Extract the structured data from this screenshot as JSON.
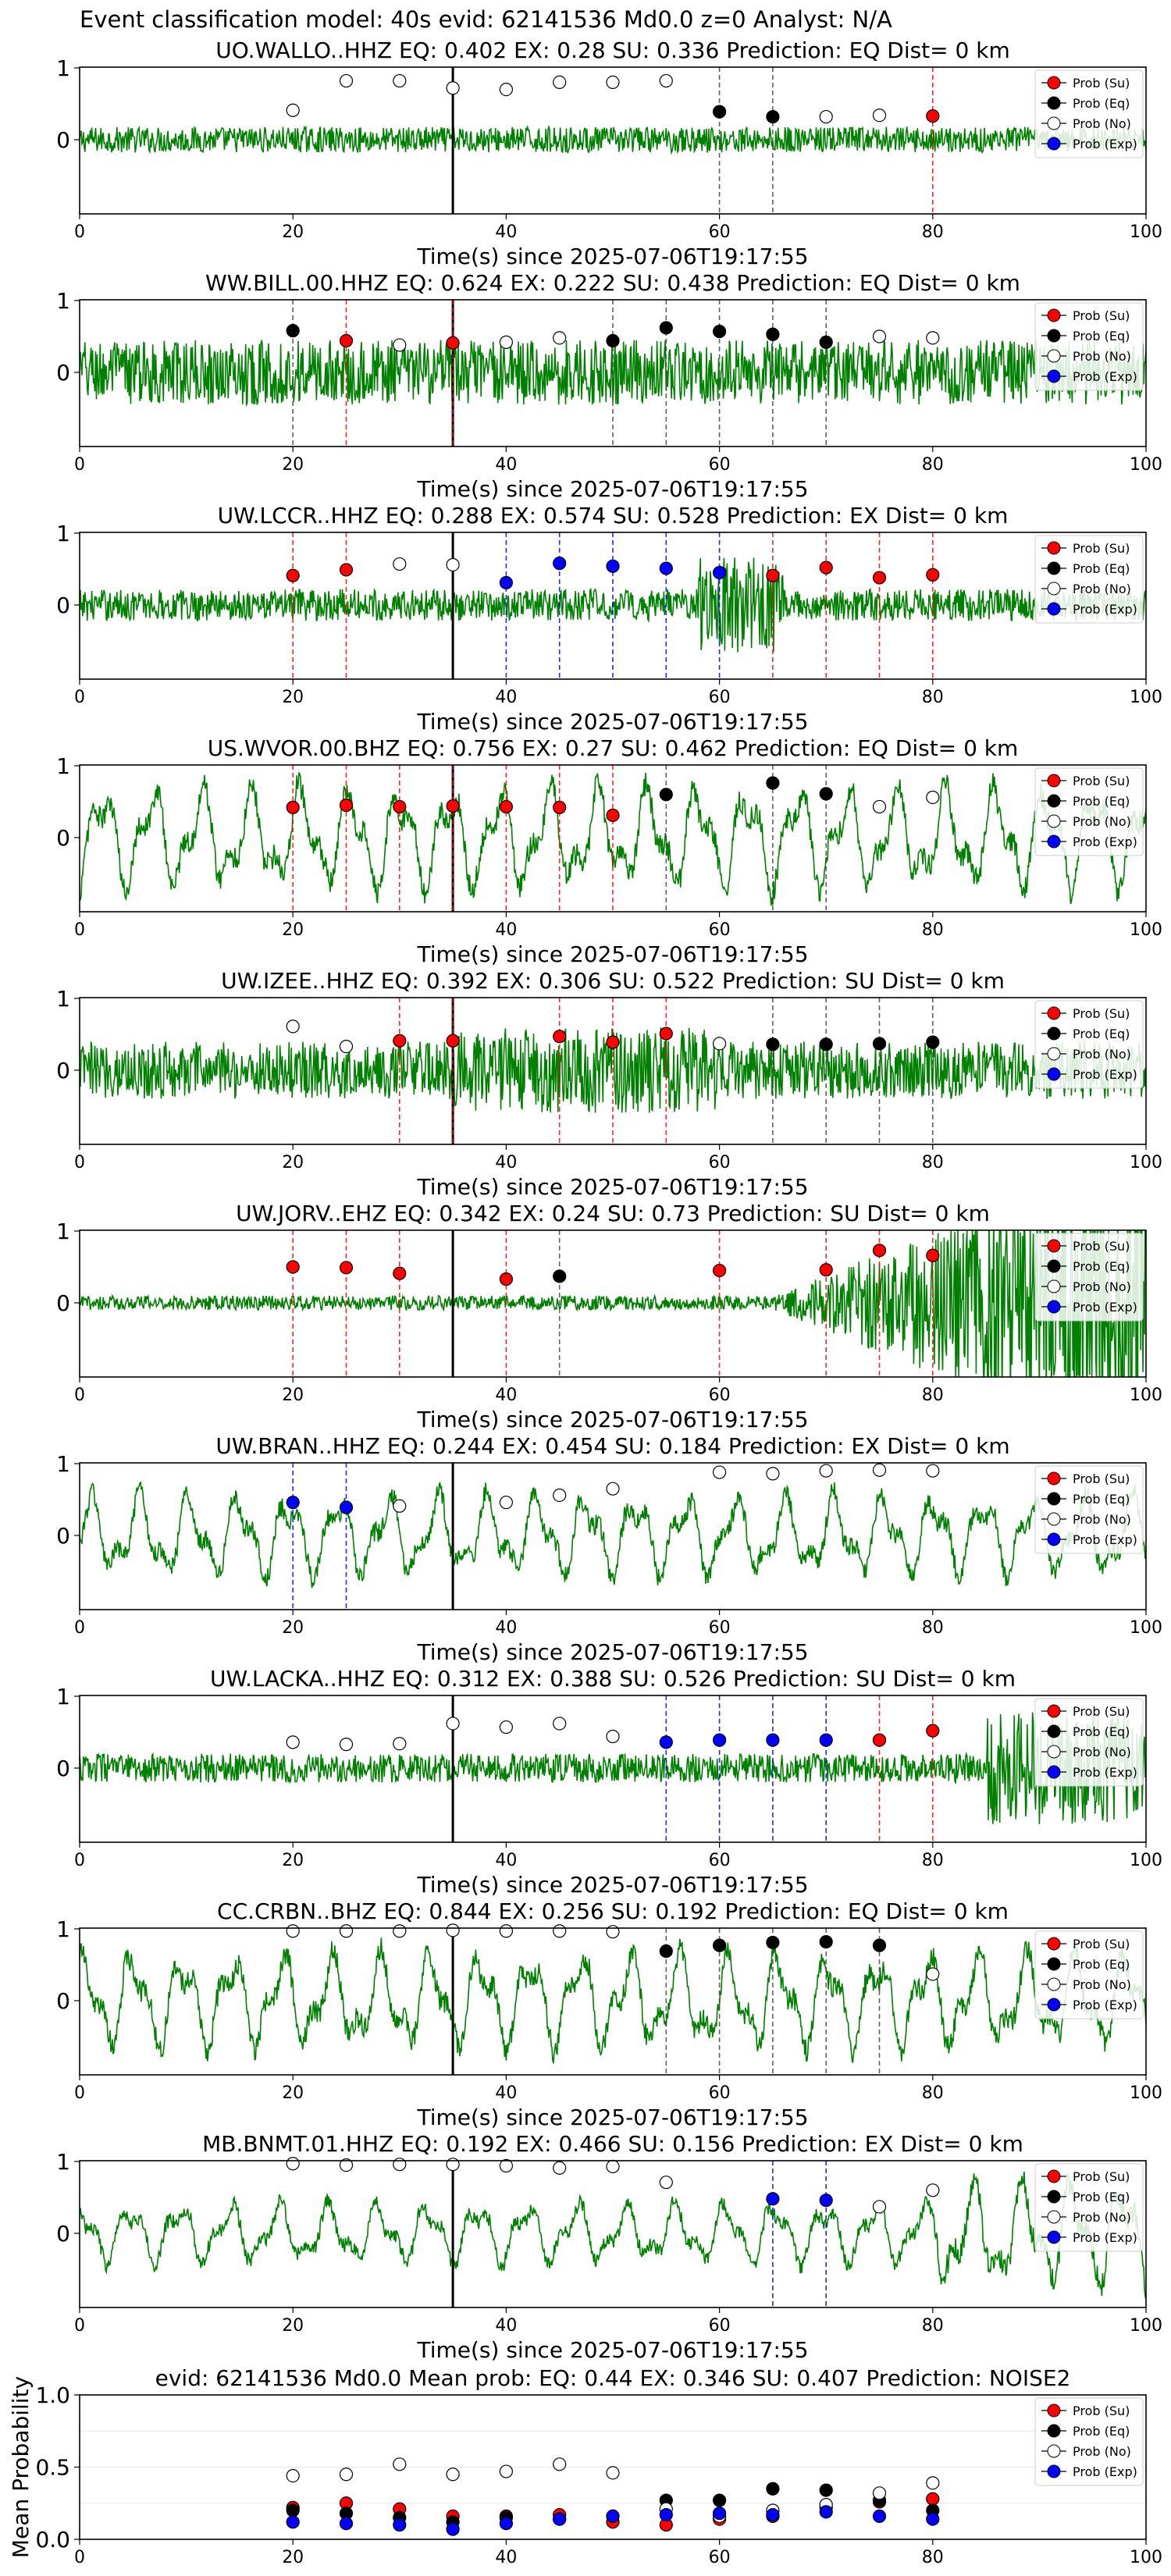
{
  "figure": {
    "suptitle": "Event classification model: 40s evid: 62141536 Md0.0 z=0 Analyst: N/A"
  },
  "colors": {
    "waveform": "#008000",
    "su": "#ff0000",
    "eq": "#000000",
    "no": "#ffffff",
    "exp": "#0000ff",
    "event_line": "#000000"
  },
  "chart_data": [
    {
      "type": "line",
      "title": "UO.WALLO..HHZ   EQ: 0.402  EX: 0.28  SU: 0.336   Prediction: EQ    Dist= 0 km",
      "xlabel": "Time(s) since 2025-07-06T19:17:55",
      "xlim": [
        0,
        100
      ],
      "xticks": [
        0,
        20,
        40,
        60,
        80,
        100
      ],
      "yticks": [
        0,
        1
      ],
      "event_time": 35,
      "waveform": {
        "character": "low-amplitude noise",
        "amplitude": 0.18
      },
      "legend": [
        "Prob (Su)",
        "Prob (Eq)",
        "Prob (No)",
        "Prob (Exp)"
      ],
      "points": [
        {
          "t": 20,
          "p": 0.41,
          "c": "no"
        },
        {
          "t": 25,
          "p": 0.82,
          "c": "no"
        },
        {
          "t": 30,
          "p": 0.82,
          "c": "no"
        },
        {
          "t": 35,
          "p": 0.72,
          "c": "no"
        },
        {
          "t": 40,
          "p": 0.7,
          "c": "no"
        },
        {
          "t": 45,
          "p": 0.8,
          "c": "no"
        },
        {
          "t": 50,
          "p": 0.8,
          "c": "no"
        },
        {
          "t": 55,
          "p": 0.82,
          "c": "no"
        },
        {
          "t": 60,
          "p": 0.39,
          "c": "eq"
        },
        {
          "t": 65,
          "p": 0.32,
          "c": "eq"
        },
        {
          "t": 70,
          "p": 0.32,
          "c": "no"
        },
        {
          "t": 75,
          "p": 0.34,
          "c": "no"
        },
        {
          "t": 80,
          "p": 0.33,
          "c": "su"
        }
      ]
    },
    {
      "type": "line",
      "title": "WW.BILL.00.HHZ   EQ: 0.624  EX: 0.222  SU: 0.438   Prediction: EQ    Dist= 0 km",
      "xlabel": "Time(s) since 2025-07-06T19:17:55",
      "xlim": [
        0,
        100
      ],
      "xticks": [
        0,
        20,
        40,
        60,
        80,
        100
      ],
      "yticks": [
        0,
        1
      ],
      "event_time": 35,
      "waveform": {
        "character": "dense noise",
        "amplitude": 0.45
      },
      "legend": [
        "Prob (Su)",
        "Prob (Eq)",
        "Prob (No)",
        "Prob (Exp)"
      ],
      "points": [
        {
          "t": 20,
          "p": 0.58,
          "c": "eq"
        },
        {
          "t": 25,
          "p": 0.44,
          "c": "su"
        },
        {
          "t": 30,
          "p": 0.38,
          "c": "no"
        },
        {
          "t": 35,
          "p": 0.41,
          "c": "su"
        },
        {
          "t": 40,
          "p": 0.42,
          "c": "no"
        },
        {
          "t": 45,
          "p": 0.48,
          "c": "no"
        },
        {
          "t": 50,
          "p": 0.44,
          "c": "eq"
        },
        {
          "t": 55,
          "p": 0.62,
          "c": "eq"
        },
        {
          "t": 60,
          "p": 0.57,
          "c": "eq"
        },
        {
          "t": 65,
          "p": 0.53,
          "c": "eq"
        },
        {
          "t": 70,
          "p": 0.42,
          "c": "eq"
        },
        {
          "t": 75,
          "p": 0.5,
          "c": "no"
        },
        {
          "t": 80,
          "p": 0.48,
          "c": "no"
        }
      ]
    },
    {
      "type": "line",
      "title": "UW.LCCR..HHZ   EQ: 0.288  EX: 0.574  SU: 0.528   Prediction: EX    Dist= 0 km",
      "xlabel": "Time(s) since 2025-07-06T19:17:55",
      "xlim": [
        0,
        100
      ],
      "xticks": [
        0,
        20,
        40,
        60,
        80,
        100
      ],
      "yticks": [
        0,
        1
      ],
      "event_time": 35,
      "waveform": {
        "character": "noise with burst near 60 s",
        "amplitude": 0.22
      },
      "legend": [
        "Prob (Su)",
        "Prob (Eq)",
        "Prob (No)",
        "Prob (Exp)"
      ],
      "points": [
        {
          "t": 20,
          "p": 0.41,
          "c": "su"
        },
        {
          "t": 25,
          "p": 0.49,
          "c": "su"
        },
        {
          "t": 30,
          "p": 0.57,
          "c": "no"
        },
        {
          "t": 35,
          "p": 0.56,
          "c": "no"
        },
        {
          "t": 40,
          "p": 0.31,
          "c": "exp"
        },
        {
          "t": 45,
          "p": 0.58,
          "c": "exp"
        },
        {
          "t": 50,
          "p": 0.54,
          "c": "exp"
        },
        {
          "t": 55,
          "p": 0.51,
          "c": "exp"
        },
        {
          "t": 60,
          "p": 0.45,
          "c": "exp"
        },
        {
          "t": 65,
          "p": 0.41,
          "c": "su"
        },
        {
          "t": 70,
          "p": 0.52,
          "c": "su"
        },
        {
          "t": 75,
          "p": 0.38,
          "c": "su"
        },
        {
          "t": 80,
          "p": 0.42,
          "c": "su"
        }
      ]
    },
    {
      "type": "line",
      "title": "US.WVOR.00.BHZ   EQ: 0.756  EX: 0.27  SU: 0.462   Prediction: EQ    Dist= 0 km",
      "xlabel": "Time(s) since 2025-07-06T19:17:55",
      "xlim": [
        0,
        100
      ],
      "xticks": [
        0,
        20,
        40,
        60,
        80,
        100
      ],
      "yticks": [
        0,
        1
      ],
      "event_time": 35,
      "waveform": {
        "character": "long-period oscillation",
        "amplitude": 0.75
      },
      "legend": [
        "Prob (Su)",
        "Prob (Eq)",
        "Prob (No)",
        "Prob (Exp)"
      ],
      "points": [
        {
          "t": 20,
          "p": 0.42,
          "c": "su"
        },
        {
          "t": 25,
          "p": 0.45,
          "c": "su"
        },
        {
          "t": 30,
          "p": 0.43,
          "c": "su"
        },
        {
          "t": 35,
          "p": 0.44,
          "c": "su"
        },
        {
          "t": 40,
          "p": 0.43,
          "c": "su"
        },
        {
          "t": 45,
          "p": 0.42,
          "c": "su"
        },
        {
          "t": 50,
          "p": 0.31,
          "c": "su"
        },
        {
          "t": 55,
          "p": 0.6,
          "c": "eq"
        },
        {
          "t": 65,
          "p": 0.76,
          "c": "eq"
        },
        {
          "t": 70,
          "p": 0.61,
          "c": "eq"
        },
        {
          "t": 75,
          "p": 0.43,
          "c": "no"
        },
        {
          "t": 80,
          "p": 0.56,
          "c": "no"
        }
      ]
    },
    {
      "type": "line",
      "title": "UW.IZEE..HHZ   EQ: 0.392  EX: 0.306  SU: 0.522   Prediction: SU    Dist= 0 km",
      "xlabel": "Time(s) since 2025-07-06T19:17:55",
      "xlim": [
        0,
        100
      ],
      "xticks": [
        0,
        20,
        40,
        60,
        80,
        100
      ],
      "yticks": [
        0,
        1
      ],
      "event_time": 35,
      "waveform": {
        "character": "dense noise, stronger 35-60 s",
        "amplitude": 0.4
      },
      "legend": [
        "Prob (Su)",
        "Prob (Eq)",
        "Prob (No)",
        "Prob (Exp)"
      ],
      "points": [
        {
          "t": 20,
          "p": 0.61,
          "c": "no"
        },
        {
          "t": 25,
          "p": 0.33,
          "c": "no"
        },
        {
          "t": 30,
          "p": 0.41,
          "c": "su"
        },
        {
          "t": 35,
          "p": 0.41,
          "c": "su"
        },
        {
          "t": 45,
          "p": 0.47,
          "c": "su"
        },
        {
          "t": 50,
          "p": 0.39,
          "c": "su"
        },
        {
          "t": 55,
          "p": 0.51,
          "c": "su"
        },
        {
          "t": 60,
          "p": 0.37,
          "c": "no"
        },
        {
          "t": 65,
          "p": 0.36,
          "c": "eq"
        },
        {
          "t": 70,
          "p": 0.36,
          "c": "eq"
        },
        {
          "t": 75,
          "p": 0.37,
          "c": "eq"
        },
        {
          "t": 80,
          "p": 0.39,
          "c": "eq"
        }
      ]
    },
    {
      "type": "line",
      "title": "UW.JORV..EHZ   EQ: 0.342  EX: 0.24  SU: 0.73   Prediction: SU    Dist= 0 km",
      "xlabel": "Time(s) since 2025-07-06T19:17:55",
      "xlim": [
        0,
        100
      ],
      "xticks": [
        0,
        20,
        40,
        60,
        80,
        100
      ],
      "yticks": [
        0,
        1
      ],
      "event_time": 35,
      "waveform": {
        "character": "quiet then large signal after 65 s",
        "amplitude": 0.1
      },
      "legend": [
        "Prob (Su)",
        "Prob (Eq)",
        "Prob (No)",
        "Prob (Exp)"
      ],
      "points": [
        {
          "t": 20,
          "p": 0.5,
          "c": "su"
        },
        {
          "t": 25,
          "p": 0.49,
          "c": "su"
        },
        {
          "t": 30,
          "p": 0.41,
          "c": "su"
        },
        {
          "t": 40,
          "p": 0.33,
          "c": "su"
        },
        {
          "t": 45,
          "p": 0.37,
          "c": "eq"
        },
        {
          "t": 60,
          "p": 0.45,
          "c": "su"
        },
        {
          "t": 70,
          "p": 0.46,
          "c": "su"
        },
        {
          "t": 75,
          "p": 0.73,
          "c": "su"
        },
        {
          "t": 80,
          "p": 0.66,
          "c": "su"
        }
      ]
    },
    {
      "type": "line",
      "title": "UW.BRAN..HHZ   EQ: 0.244  EX: 0.454  SU: 0.184   Prediction: EX    Dist= 0 km",
      "xlabel": "Time(s) since 2025-07-06T19:17:55",
      "xlim": [
        0,
        100
      ],
      "xticks": [
        0,
        20,
        40,
        60,
        80,
        100
      ],
      "yticks": [
        0,
        1
      ],
      "event_time": 35,
      "waveform": {
        "character": "long-period oscillation",
        "amplitude": 0.6
      },
      "legend": [
        "Prob (Su)",
        "Prob (Eq)",
        "Prob (No)",
        "Prob (Exp)"
      ],
      "points": [
        {
          "t": 20,
          "p": 0.46,
          "c": "exp"
        },
        {
          "t": 25,
          "p": 0.39,
          "c": "exp"
        },
        {
          "t": 30,
          "p": 0.41,
          "c": "no"
        },
        {
          "t": 40,
          "p": 0.46,
          "c": "no"
        },
        {
          "t": 45,
          "p": 0.56,
          "c": "no"
        },
        {
          "t": 50,
          "p": 0.65,
          "c": "no"
        },
        {
          "t": 60,
          "p": 0.88,
          "c": "no"
        },
        {
          "t": 65,
          "p": 0.86,
          "c": "no"
        },
        {
          "t": 70,
          "p": 0.9,
          "c": "no"
        },
        {
          "t": 75,
          "p": 0.91,
          "c": "no"
        },
        {
          "t": 80,
          "p": 0.9,
          "c": "no"
        }
      ]
    },
    {
      "type": "line",
      "title": "UW.LACKA..HHZ   EQ: 0.312  EX: 0.388  SU: 0.526   Prediction: SU    Dist= 0 km",
      "xlabel": "Time(s) since 2025-07-06T19:17:55",
      "xlim": [
        0,
        100
      ],
      "xticks": [
        0,
        20,
        40,
        60,
        80,
        100
      ],
      "yticks": [
        0,
        1
      ],
      "event_time": 35,
      "waveform": {
        "character": "noise with large signal after 85 s",
        "amplitude": 0.2
      },
      "legend": [
        "Prob (Su)",
        "Prob (Eq)",
        "Prob (No)",
        "Prob (Exp)"
      ],
      "points": [
        {
          "t": 20,
          "p": 0.36,
          "c": "no"
        },
        {
          "t": 25,
          "p": 0.33,
          "c": "no"
        },
        {
          "t": 30,
          "p": 0.34,
          "c": "no"
        },
        {
          "t": 35,
          "p": 0.62,
          "c": "no"
        },
        {
          "t": 40,
          "p": 0.57,
          "c": "no"
        },
        {
          "t": 45,
          "p": 0.62,
          "c": "no"
        },
        {
          "t": 50,
          "p": 0.44,
          "c": "no"
        },
        {
          "t": 55,
          "p": 0.36,
          "c": "exp"
        },
        {
          "t": 60,
          "p": 0.39,
          "c": "exp"
        },
        {
          "t": 65,
          "p": 0.39,
          "c": "exp"
        },
        {
          "t": 70,
          "p": 0.39,
          "c": "exp"
        },
        {
          "t": 75,
          "p": 0.39,
          "c": "su"
        },
        {
          "t": 80,
          "p": 0.52,
          "c": "su"
        }
      ]
    },
    {
      "type": "line",
      "title": "CC.CRBN..BHZ   EQ: 0.844  EX: 0.256  SU: 0.192   Prediction: EQ    Dist= 0 km",
      "xlabel": "Time(s) since 2025-07-06T19:17:55",
      "xlim": [
        0,
        100
      ],
      "xticks": [
        0,
        20,
        40,
        60,
        80,
        100
      ],
      "yticks": [
        0,
        1
      ],
      "event_time": 35,
      "waveform": {
        "character": "long-period oscillation",
        "amplitude": 0.7
      },
      "legend": [
        "Prob (Su)",
        "Prob (Eq)",
        "Prob (No)",
        "Prob (Exp)"
      ],
      "points": [
        {
          "t": 20,
          "p": 0.97,
          "c": "no"
        },
        {
          "t": 25,
          "p": 0.97,
          "c": "no"
        },
        {
          "t": 30,
          "p": 0.97,
          "c": "no"
        },
        {
          "t": 35,
          "p": 0.98,
          "c": "no"
        },
        {
          "t": 40,
          "p": 0.97,
          "c": "no"
        },
        {
          "t": 45,
          "p": 0.97,
          "c": "no"
        },
        {
          "t": 50,
          "p": 0.96,
          "c": "no"
        },
        {
          "t": 55,
          "p": 0.69,
          "c": "eq"
        },
        {
          "t": 60,
          "p": 0.77,
          "c": "eq"
        },
        {
          "t": 65,
          "p": 0.81,
          "c": "eq"
        },
        {
          "t": 70,
          "p": 0.82,
          "c": "eq"
        },
        {
          "t": 75,
          "p": 0.77,
          "c": "eq"
        },
        {
          "t": 80,
          "p": 0.37,
          "c": "no"
        }
      ]
    },
    {
      "type": "line",
      "title": "MB.BNMT.01.HHZ   EQ: 0.192  EX: 0.466  SU: 0.156   Prediction: EX    Dist= 0 km",
      "xlabel": "Time(s) since 2025-07-06T19:17:55",
      "xlim": [
        0,
        100
      ],
      "xticks": [
        0,
        20,
        40,
        60,
        80,
        100
      ],
      "yticks": [
        0,
        1
      ],
      "event_time": 35,
      "waveform": {
        "character": "long-period oscillation, stronger after 80 s",
        "amplitude": 0.45
      },
      "legend": [
        "Prob (Su)",
        "Prob (Eq)",
        "Prob (No)",
        "Prob (Exp)"
      ],
      "points": [
        {
          "t": 20,
          "p": 0.97,
          "c": "no"
        },
        {
          "t": 25,
          "p": 0.95,
          "c": "no"
        },
        {
          "t": 30,
          "p": 0.96,
          "c": "no"
        },
        {
          "t": 35,
          "p": 0.96,
          "c": "no"
        },
        {
          "t": 40,
          "p": 0.94,
          "c": "no"
        },
        {
          "t": 45,
          "p": 0.91,
          "c": "no"
        },
        {
          "t": 50,
          "p": 0.93,
          "c": "no"
        },
        {
          "t": 55,
          "p": 0.71,
          "c": "no"
        },
        {
          "t": 65,
          "p": 0.48,
          "c": "exp"
        },
        {
          "t": 70,
          "p": 0.46,
          "c": "exp"
        },
        {
          "t": 75,
          "p": 0.37,
          "c": "no"
        },
        {
          "t": 80,
          "p": 0.6,
          "c": "no"
        }
      ]
    },
    {
      "type": "scatter",
      "title": "evid: 62141536  Md0.0   Mean prob:   EQ: 0.44  EX: 0.346  SU: 0.407   Prediction: NOISE2",
      "xlabel": "",
      "ylabel": "Mean Probability",
      "xlim": [
        0,
        100
      ],
      "ylim": [
        0,
        1
      ],
      "xticks": [
        0,
        20,
        40,
        60,
        80,
        100
      ],
      "yticks": [
        0.0,
        0.5,
        1.0
      ],
      "legend": [
        "Prob (Su)",
        "Prob (Eq)",
        "Prob (No)",
        "Prob (Exp)"
      ],
      "series": [
        {
          "name": "Prob (Su)",
          "key": "su",
          "x": [
            20,
            25,
            30,
            35,
            40,
            45,
            50,
            55,
            60,
            65,
            70,
            75,
            80
          ],
          "y": [
            0.22,
            0.25,
            0.21,
            0.16,
            0.16,
            0.17,
            0.12,
            0.1,
            0.14,
            0.16,
            0.22,
            0.26,
            0.28
          ]
        },
        {
          "name": "Prob (Eq)",
          "key": "eq",
          "x": [
            20,
            25,
            30,
            35,
            40,
            45,
            50,
            55,
            60,
            65,
            70,
            75,
            80
          ],
          "y": [
            0.2,
            0.18,
            0.15,
            0.12,
            0.15,
            0.14,
            0.16,
            0.27,
            0.27,
            0.35,
            0.34,
            0.27,
            0.2
          ]
        },
        {
          "name": "Prob (No)",
          "key": "no",
          "x": [
            20,
            25,
            30,
            35,
            40,
            45,
            50,
            55,
            60,
            65,
            70,
            75,
            80
          ],
          "y": [
            0.44,
            0.45,
            0.52,
            0.45,
            0.47,
            0.52,
            0.46,
            0.21,
            0.16,
            0.2,
            0.24,
            0.32,
            0.39
          ]
        },
        {
          "name": "Prob (Exp)",
          "key": "exp",
          "x": [
            20,
            25,
            30,
            35,
            40,
            45,
            50,
            55,
            60,
            65,
            70,
            75,
            80
          ],
          "y": [
            0.12,
            0.11,
            0.1,
            0.07,
            0.11,
            0.14,
            0.16,
            0.17,
            0.18,
            0.17,
            0.19,
            0.16,
            0.14
          ]
        }
      ]
    }
  ]
}
